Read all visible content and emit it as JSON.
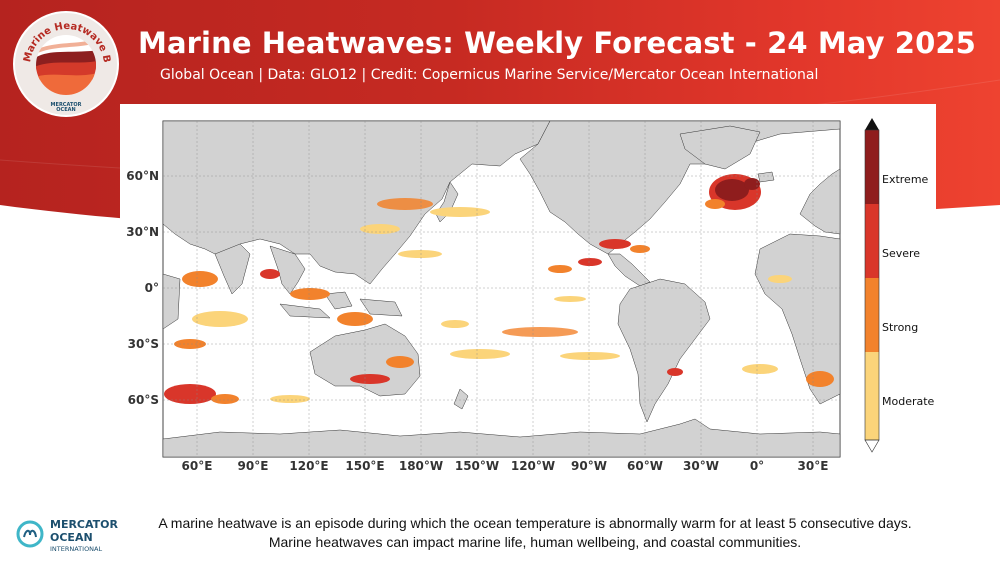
{
  "header": {
    "title": "Marine Heatwaves: Weekly Forecast - 24 May 2025",
    "subtitle": "Global Ocean | Data: GLO12 | Credit: Copernicus Marine Service/Mercator Ocean International"
  },
  "logo": {
    "ring_text": "Marine Heatwave Bulletin",
    "org_line1": "MERCATOR",
    "org_line2": "OCEAN"
  },
  "map": {
    "lat_labels": [
      "60°N",
      "30°N",
      "0°",
      "30°S",
      "60°S"
    ],
    "lon_labels": [
      "60°E",
      "90°E",
      "120°E",
      "150°E",
      "180°W",
      "150°W",
      "120°W",
      "90°W",
      "60°W",
      "30°W",
      "0°",
      "30°E"
    ],
    "colors": {
      "land": "#d2d2d2",
      "ocean": "#ffffff",
      "moderate": "#fbd47a",
      "strong": "#f2822c",
      "severe": "#d9362a",
      "extreme": "#8f1d1d"
    }
  },
  "legend": {
    "categories": [
      "Extreme",
      "Severe",
      "Strong",
      "Moderate"
    ],
    "colors": [
      "#8f1d1d",
      "#d9362a",
      "#f2822c",
      "#fbd47a"
    ]
  },
  "caption": "A marine heatwave is an episode during which the ocean temperature is abnormally warm for at least 5 consecutive days. Marine heatwaves can impact marine life, human wellbeing, and coastal communities.",
  "footer": {
    "org_line1": "MERCATOR",
    "org_line2": "OCEAN",
    "org_line3": "INTERNATIONAL"
  }
}
